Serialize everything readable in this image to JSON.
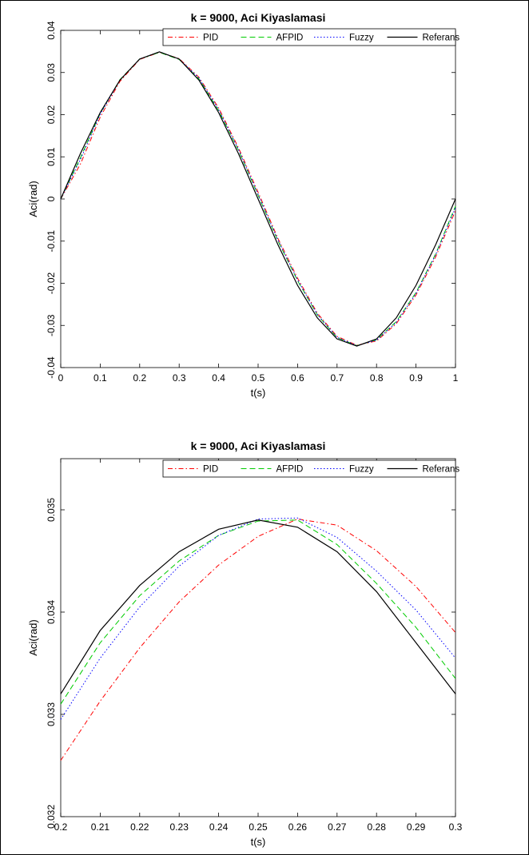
{
  "chart_data": [
    {
      "type": "line",
      "title": "k = 9000, Aci Kiyaslamasi",
      "xlabel": "t(s)",
      "ylabel": "Aci(rad)",
      "xlim": [
        0,
        1
      ],
      "ylim": [
        -0.04,
        0.04
      ],
      "xticks": [
        "0",
        "0.1",
        "0.2",
        "0.3",
        "0.4",
        "0.5",
        "0.6",
        "0.7",
        "0.8",
        "0.9",
        "1"
      ],
      "yticks": [
        "-0.04",
        "-0.03",
        "-0.02",
        "-0.01",
        "0",
        "0.01",
        "0.02",
        "0.03",
        "0.04"
      ],
      "xtick_values": [
        0,
        0.1,
        0.2,
        0.3,
        0.4,
        0.5,
        0.6,
        0.7,
        0.8,
        0.9,
        1
      ],
      "ytick_values": [
        -0.04,
        -0.03,
        -0.02,
        -0.01,
        0,
        0.01,
        0.02,
        0.03,
        0.04
      ],
      "legend_position": "top-right",
      "x": [
        0,
        0.05,
        0.1,
        0.15,
        0.2,
        0.25,
        0.3,
        0.35,
        0.4,
        0.45,
        0.5,
        0.55,
        0.6,
        0.65,
        0.7,
        0.75,
        0.8,
        0.85,
        0.9,
        0.95,
        1.0
      ],
      "series": [
        {
          "name": "PID",
          "color": "#ff0000",
          "dash": "dashdot",
          "values": [
            0.0,
            0.0083,
            0.0194,
            0.0279,
            0.0331,
            0.0348,
            0.0333,
            0.0289,
            0.0216,
            0.0122,
            0.0016,
            -0.0093,
            -0.0188,
            -0.0271,
            -0.0326,
            -0.0347,
            -0.0337,
            -0.0296,
            -0.0228,
            -0.0137,
            -0.0028
          ]
        },
        {
          "name": "AFPID",
          "color": "#00cc00",
          "dash": "dashed",
          "values": [
            0.0,
            0.0098,
            0.0203,
            0.0283,
            0.0332,
            0.0348,
            0.0331,
            0.0285,
            0.021,
            0.0116,
            0.0009,
            -0.0099,
            -0.0194,
            -0.0275,
            -0.0329,
            -0.0348,
            -0.0334,
            -0.0291,
            -0.0222,
            -0.013,
            -0.0017
          ]
        },
        {
          "name": "Fuzzy",
          "color": "#0000ff",
          "dash": "dotted",
          "values": [
            0.0,
            0.0094,
            0.0201,
            0.0282,
            0.0332,
            0.0349,
            0.0332,
            0.0287,
            0.0212,
            0.0118,
            0.0011,
            -0.0097,
            -0.0192,
            -0.0274,
            -0.0328,
            -0.0348,
            -0.0335,
            -0.0293,
            -0.0224,
            -0.0132,
            -0.0021
          ]
        },
        {
          "name": "Referans",
          "color": "#000000",
          "dash": "solid",
          "values": [
            0.0,
            0.0108,
            0.0205,
            0.0282,
            0.0332,
            0.0349,
            0.0332,
            0.0282,
            0.0205,
            0.0108,
            0.0,
            -0.0108,
            -0.0205,
            -0.0282,
            -0.0332,
            -0.0349,
            -0.0332,
            -0.0282,
            -0.0205,
            -0.0108,
            0.0
          ]
        }
      ]
    },
    {
      "type": "line",
      "title": "k = 9000, Aci Kiyaslamasi",
      "xlabel": "t(s)",
      "ylabel": "Aci(rad)",
      "xlim": [
        0.2,
        0.3
      ],
      "ylim": [
        0.032,
        0.0355
      ],
      "xticks": [
        "0.2",
        "0.21",
        "0.22",
        "0.23",
        "0.24",
        "0.25",
        "0.26",
        "0.27",
        "0.28",
        "0.29",
        "0.3"
      ],
      "yticks": [
        "0.032",
        "0.033",
        "0.034",
        "0.035"
      ],
      "xtick_values": [
        0.2,
        0.21,
        0.22,
        0.23,
        0.24,
        0.25,
        0.26,
        0.27,
        0.28,
        0.29,
        0.3
      ],
      "ytick_values": [
        0.032,
        0.033,
        0.034,
        0.035
      ],
      "legend_position": "top-right",
      "x": [
        0.2,
        0.21,
        0.22,
        0.23,
        0.24,
        0.25,
        0.26,
        0.27,
        0.28,
        0.29,
        0.3
      ],
      "series": [
        {
          "name": "PID",
          "color": "#ff0000",
          "dash": "dashdot",
          "values": [
            0.03255,
            0.03313,
            0.03365,
            0.0341,
            0.03446,
            0.03474,
            0.03491,
            0.03485,
            0.0346,
            0.03425,
            0.0338
          ]
        },
        {
          "name": "AFPID",
          "color": "#00cc00",
          "dash": "dashed",
          "values": [
            0.0331,
            0.0337,
            0.03416,
            0.0345,
            0.03475,
            0.03489,
            0.0349,
            0.03466,
            0.03428,
            0.03385,
            0.03335
          ]
        },
        {
          "name": "Fuzzy",
          "color": "#0000ff",
          "dash": "dotted",
          "values": [
            0.03295,
            0.03355,
            0.03405,
            0.03445,
            0.03475,
            0.03491,
            0.03492,
            0.03473,
            0.0344,
            0.03402,
            0.03355
          ]
        },
        {
          "name": "Referans",
          "color": "#000000",
          "dash": "solid",
          "values": [
            0.0332,
            0.03382,
            0.03426,
            0.03459,
            0.03481,
            0.0349,
            0.03483,
            0.03459,
            0.0342,
            0.0337,
            0.0332
          ]
        }
      ]
    }
  ]
}
